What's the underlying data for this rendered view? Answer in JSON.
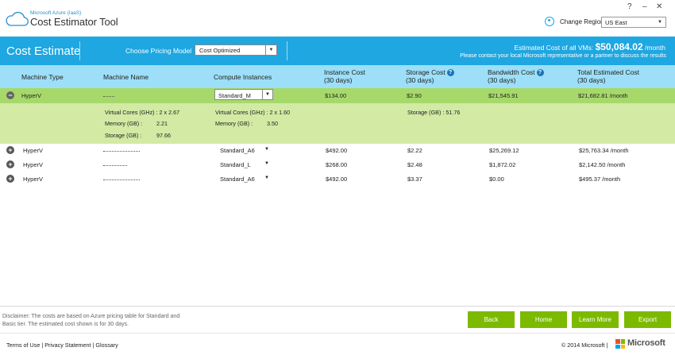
{
  "app": {
    "brand_small": "Microsoft Azure (IaaS)",
    "brand_big": "Cost Estimator Tool",
    "help_glyph": "?",
    "minimize_glyph": "–",
    "maximize_glyph": "□",
    "close_glyph": "✕",
    "change_region_label": "Change Region",
    "region_value": "US East",
    "accent_color": "#1ea7e1"
  },
  "banner": {
    "title": "Cost Estimate",
    "pricing_model_label": "Choose Pricing Model",
    "pricing_model_value": "Cost Optimized",
    "est_prefix": "Estimated Cost of all VMs: ",
    "est_amount": "$50,084.02",
    "est_suffix": " /month",
    "contact_note": "Please contact your local Microsoft representative or a partner to discuss the results"
  },
  "columns": {
    "machine_type": "Machine Type",
    "machine_name": "Machine Name",
    "compute_instances": "Compute Instances",
    "instance_cost": "Instance Cost",
    "instance_cost_sub": "(30 days)",
    "storage_cost": "Storage Cost",
    "storage_cost_sub": "(30 days)",
    "bandwidth_cost": "Bandwidth Cost",
    "bandwidth_cost_sub": "(30 days)",
    "total_cost": "Total Estimated Cost",
    "total_cost_sub": "(30 days)",
    "help_glyph": "?"
  },
  "rows": [
    {
      "expander": "−",
      "type": "HyperV",
      "instance": "Standard_M",
      "instance_cost": "$134.00",
      "storage_cost": "$2.90",
      "bandwidth_cost": "$21,545.91",
      "total": "$21,682.81 /month"
    },
    {
      "expander": "+",
      "type": "HyperV",
      "instance": "Standard_A6",
      "instance_cost": "$492.00",
      "storage_cost": "$2.22",
      "bandwidth_cost": "$25,269.12",
      "total": "$25,763.34 /month"
    },
    {
      "expander": "+",
      "type": "HyperV",
      "instance": "Standard_L",
      "instance_cost": "$268.00",
      "storage_cost": "$2.48",
      "bandwidth_cost": "$1,872.02",
      "total": "$2,142.50 /month"
    },
    {
      "expander": "+",
      "type": "HyperV",
      "instance": "Standard_A6",
      "instance_cost": "$492.00",
      "storage_cost": "$3.37",
      "bandwidth_cost": "$0.00",
      "total": "$495.37 /month"
    }
  ],
  "detail": {
    "vcores_src": "Virtual Cores (GHz) : 2 x 2.67",
    "memory_src_label": "Memory (GB) :",
    "memory_src_value": "2.21",
    "storage_src_label": "Storage (GB) :",
    "storage_src_value": "97.66",
    "vcores_target": "Virtual Cores (GHz) : 2 x 1.60",
    "memory_target_label": "Memory (GB) :",
    "memory_target_value": "3.50",
    "storage_target": "Storage (GB) : 51.76"
  },
  "footer": {
    "disclaimer": "Disclaimer: The costs are based on Azure pricing table for Standard and Basic tier. The estimated cost shown is for 30 days.",
    "back": "Back",
    "home": "Home",
    "learn_more": "Learn More",
    "export": "Export",
    "terms": "Terms of Use",
    "sep": "|",
    "privacy": "Privacy Statement",
    "glossary": "Glossary",
    "copyright": "© 2014 Microsoft",
    "ms_word": "Microsoft",
    "button_color": "#7cba00"
  }
}
